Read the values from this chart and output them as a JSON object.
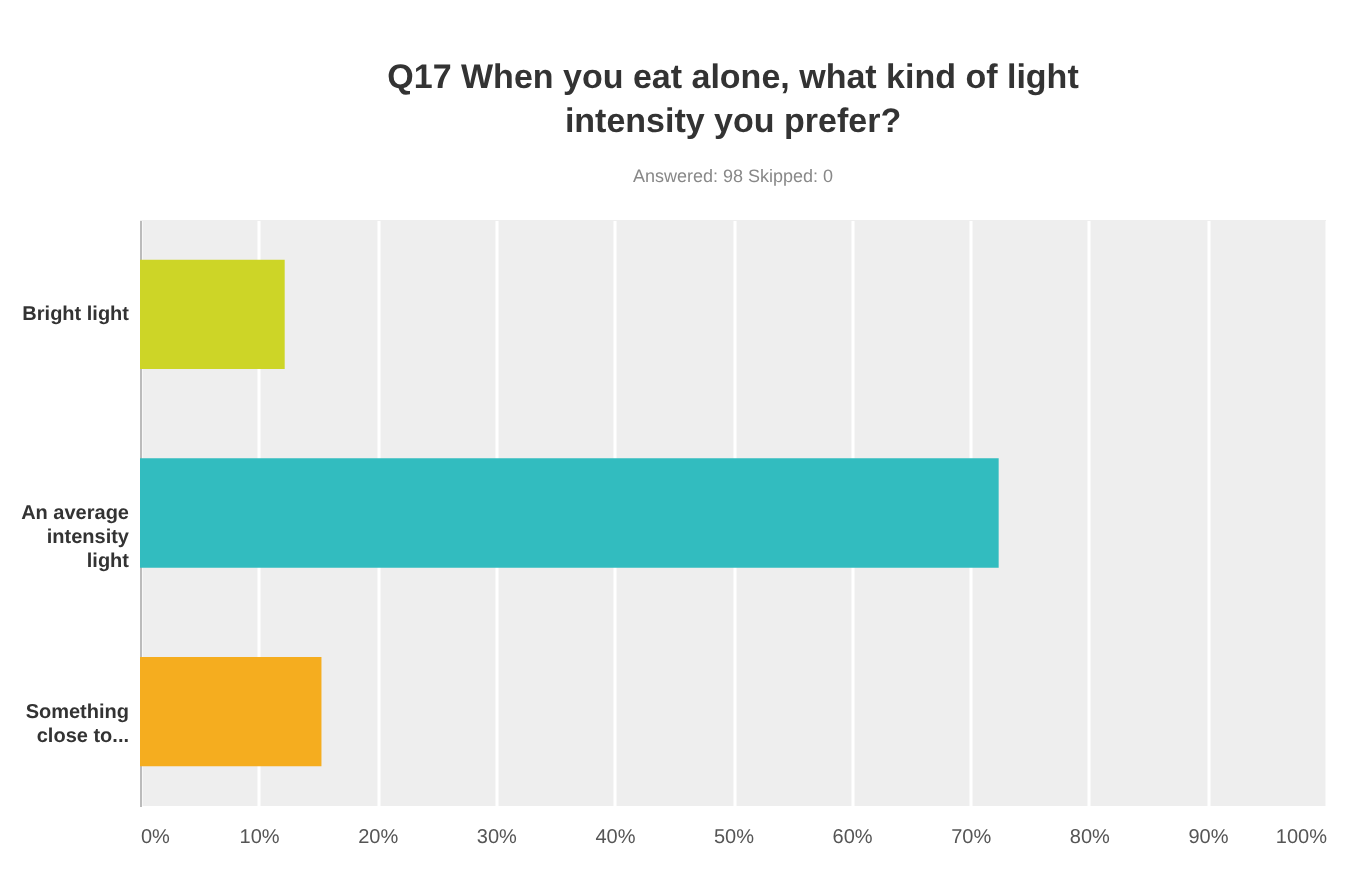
{
  "chart_data": {
    "type": "bar",
    "orientation": "horizontal",
    "title": "Q17 When you eat alone, what kind of light intensity you prefer?",
    "subtitle": "Answered: 98    Skipped: 0",
    "categories": [
      "Bright light",
      "An average intensity light",
      "Something close to..."
    ],
    "values": [
      12.2,
      72.4,
      15.3
    ],
    "colors": [
      "#cdd527",
      "#32bcbf",
      "#f5ad1f"
    ],
    "xlim": [
      0,
      100
    ],
    "xticks": [
      {
        "value": 0,
        "label": "0%"
      },
      {
        "value": 10,
        "label": "10%"
      },
      {
        "value": 20,
        "label": "20%"
      },
      {
        "value": 30,
        "label": "30%"
      },
      {
        "value": 40,
        "label": "40%"
      },
      {
        "value": 50,
        "label": "50%"
      },
      {
        "value": 60,
        "label": "60%"
      },
      {
        "value": 70,
        "label": "70%"
      },
      {
        "value": 80,
        "label": "80%"
      },
      {
        "value": 90,
        "label": "90%"
      },
      {
        "value": 100,
        "label": "100%"
      }
    ],
    "grid": "x",
    "legend": false
  }
}
